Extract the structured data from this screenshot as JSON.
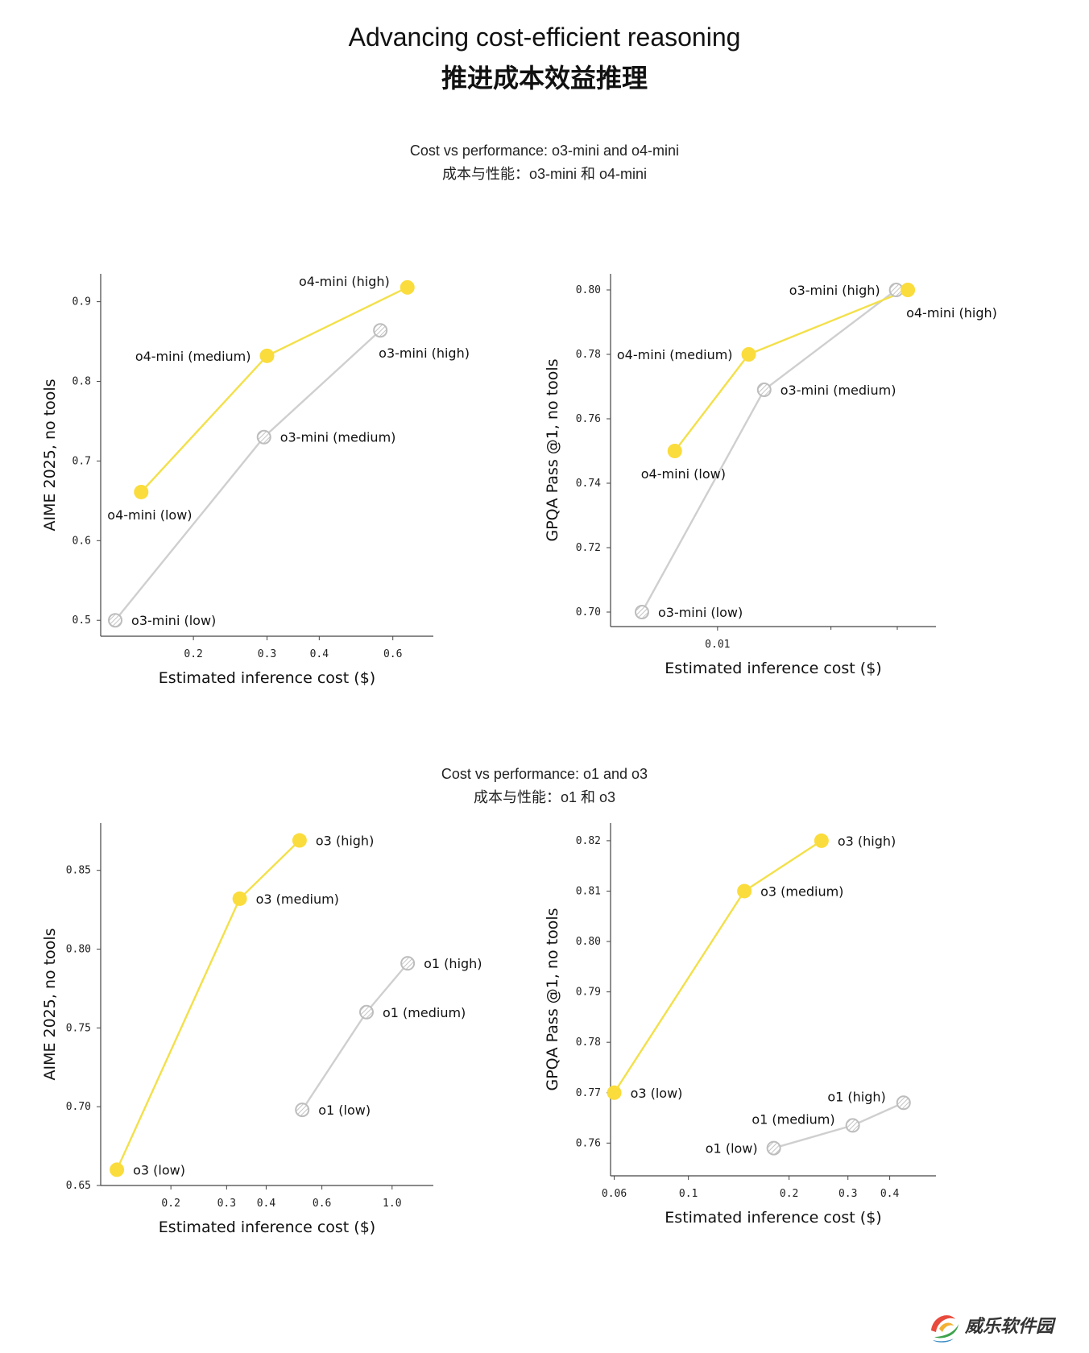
{
  "header": {
    "title_en": "Advancing cost-efficient reasoning",
    "title_zh": "推进成本效益推理"
  },
  "sections": [
    {
      "title_en": "Cost vs performance: o3-mini and o4-mini",
      "title_zh": "成本与性能：o3-mini 和 o4-mini"
    },
    {
      "title_en": "Cost vs performance: o1 and o3",
      "title_zh": "成本与性能：o1 和 o3"
    }
  ],
  "colors": {
    "highlight": "#FADC3C",
    "highlight_line": "#F3E04A",
    "grey_line": "#CFCFCF",
    "grey_point": "#BDBDBD",
    "axis": "#444444"
  },
  "watermark": {
    "text": "威乐软件园"
  },
  "chart_data": [
    {
      "type": "line",
      "xlabel": "Estimated inference cost ($)",
      "ylabel": "AIME 2025, no tools",
      "x_scale": "log",
      "xlim": [
        0.12,
        0.75
      ],
      "ylim": [
        0.48,
        0.935
      ],
      "xticks": [
        0.2,
        0.3,
        0.4,
        0.6
      ],
      "xtick_labels": [
        "0.2",
        "0.3",
        "0.4",
        "0.6"
      ],
      "yticks": [
        0.5,
        0.6,
        0.7,
        0.8,
        0.9
      ],
      "ytick_labels": [
        "0.5",
        "0.6",
        "0.7",
        "0.8",
        "0.9"
      ],
      "series": [
        {
          "name": "o3-mini",
          "style": "grey",
          "labels": [
            "o3-mini (low)",
            "o3-mini (medium)",
            "o3-mini (high)"
          ],
          "x": [
            0.13,
            0.295,
            0.56
          ],
          "y": [
            0.5,
            0.73,
            0.864
          ],
          "label_pos": [
            "right",
            "right",
            "below-right"
          ]
        },
        {
          "name": "o4-mini",
          "style": "highlight",
          "labels": [
            "o4-mini (low)",
            "o4-mini (medium)",
            "o4-mini (high)"
          ],
          "x": [
            0.15,
            0.3,
            0.65
          ],
          "y": [
            0.661,
            0.832,
            0.918
          ],
          "label_pos": [
            "below",
            "left",
            "above-left"
          ]
        }
      ]
    },
    {
      "type": "line",
      "xlabel": "Estimated inference cost ($)",
      "ylabel": "GPQA Pass @1, no tools",
      "x_scale": "log",
      "xlim": [
        0.0052,
        0.038
      ],
      "ylim": [
        0.6955,
        0.805
      ],
      "xticks": [
        0.01
      ],
      "xtick_labels": [
        "0.01"
      ],
      "minor_xticks": [
        0.02,
        0.03
      ],
      "yticks": [
        0.7,
        0.72,
        0.74,
        0.76,
        0.78,
        0.8
      ],
      "ytick_labels": [
        "0.70",
        "0.72",
        "0.74",
        "0.76",
        "0.78",
        "0.80"
      ],
      "series": [
        {
          "name": "o3-mini",
          "style": "grey",
          "labels": [
            "o3-mini (low)",
            "o3-mini (medium)",
            "o3-mini (high)"
          ],
          "x": [
            0.0063,
            0.0133,
            0.0298
          ],
          "y": [
            0.7,
            0.769,
            0.8
          ],
          "label_pos": [
            "right",
            "right",
            "left"
          ]
        },
        {
          "name": "o4-mini",
          "style": "highlight",
          "labels": [
            "o4-mini (low)",
            "o4-mini (medium)",
            "o4-mini (high)"
          ],
          "x": [
            0.0077,
            0.0121,
            0.032
          ],
          "y": [
            0.75,
            0.78,
            0.8
          ],
          "label_pos": [
            "below",
            "left",
            "below-right"
          ]
        }
      ]
    },
    {
      "type": "line",
      "xlabel": "Estimated inference cost ($)",
      "ylabel": "AIME 2025, no tools",
      "x_scale": "log",
      "xlim": [
        0.12,
        1.35
      ],
      "ylim": [
        0.65,
        0.88
      ],
      "xticks": [
        0.2,
        0.3,
        0.4,
        0.6,
        1.0
      ],
      "xtick_labels": [
        "0.2",
        "0.3",
        "0.4",
        "0.6",
        "1.0"
      ],
      "yticks": [
        0.65,
        0.7,
        0.75,
        0.8,
        0.85
      ],
      "ytick_labels": [
        "0.65",
        "0.70",
        "0.75",
        "0.80",
        "0.85"
      ],
      "series": [
        {
          "name": "o1",
          "style": "grey",
          "labels": [
            "o1 (low)",
            "o1 (medium)",
            "o1 (high)"
          ],
          "x": [
            0.52,
            0.83,
            1.12
          ],
          "y": [
            0.698,
            0.76,
            0.791
          ],
          "label_pos": [
            "right",
            "right",
            "right"
          ]
        },
        {
          "name": "o3",
          "style": "highlight",
          "labels": [
            "o3 (low)",
            "o3 (medium)",
            "o3 (high)"
          ],
          "x": [
            0.135,
            0.33,
            0.51
          ],
          "y": [
            0.66,
            0.832,
            0.869
          ],
          "label_pos": [
            "right",
            "right",
            "right"
          ]
        }
      ]
    },
    {
      "type": "line",
      "xlabel": "Estimated inference cost ($)",
      "ylabel": "GPQA Pass @1, no tools",
      "x_scale": "log",
      "xlim": [
        0.0585,
        0.55
      ],
      "ylim": [
        0.7535,
        0.8235
      ],
      "xticks": [
        0.06,
        0.1,
        0.2,
        0.3,
        0.4
      ],
      "xtick_labels": [
        "0.06",
        "0.1",
        "0.2",
        "0.3",
        "0.4"
      ],
      "yticks": [
        0.76,
        0.77,
        0.78,
        0.79,
        0.8,
        0.81,
        0.82
      ],
      "ytick_labels": [
        "0.76",
        "0.77",
        "0.78",
        "0.79",
        "0.80",
        "0.81",
        "0.82"
      ],
      "series": [
        {
          "name": "o1",
          "style": "grey",
          "labels": [
            "o1 (low)",
            "o1 (medium)",
            "o1 (high)"
          ],
          "x": [
            0.18,
            0.31,
            0.44
          ],
          "y": [
            0.759,
            0.7635,
            0.768
          ],
          "label_pos": [
            "left",
            "above-left",
            "above-left"
          ]
        },
        {
          "name": "o3",
          "style": "highlight",
          "labels": [
            "o3 (low)",
            "o3 (medium)",
            "o3 (high)"
          ],
          "x": [
            0.06,
            0.147,
            0.25
          ],
          "y": [
            0.77,
            0.81,
            0.82
          ],
          "label_pos": [
            "right",
            "right",
            "right"
          ]
        }
      ]
    }
  ]
}
